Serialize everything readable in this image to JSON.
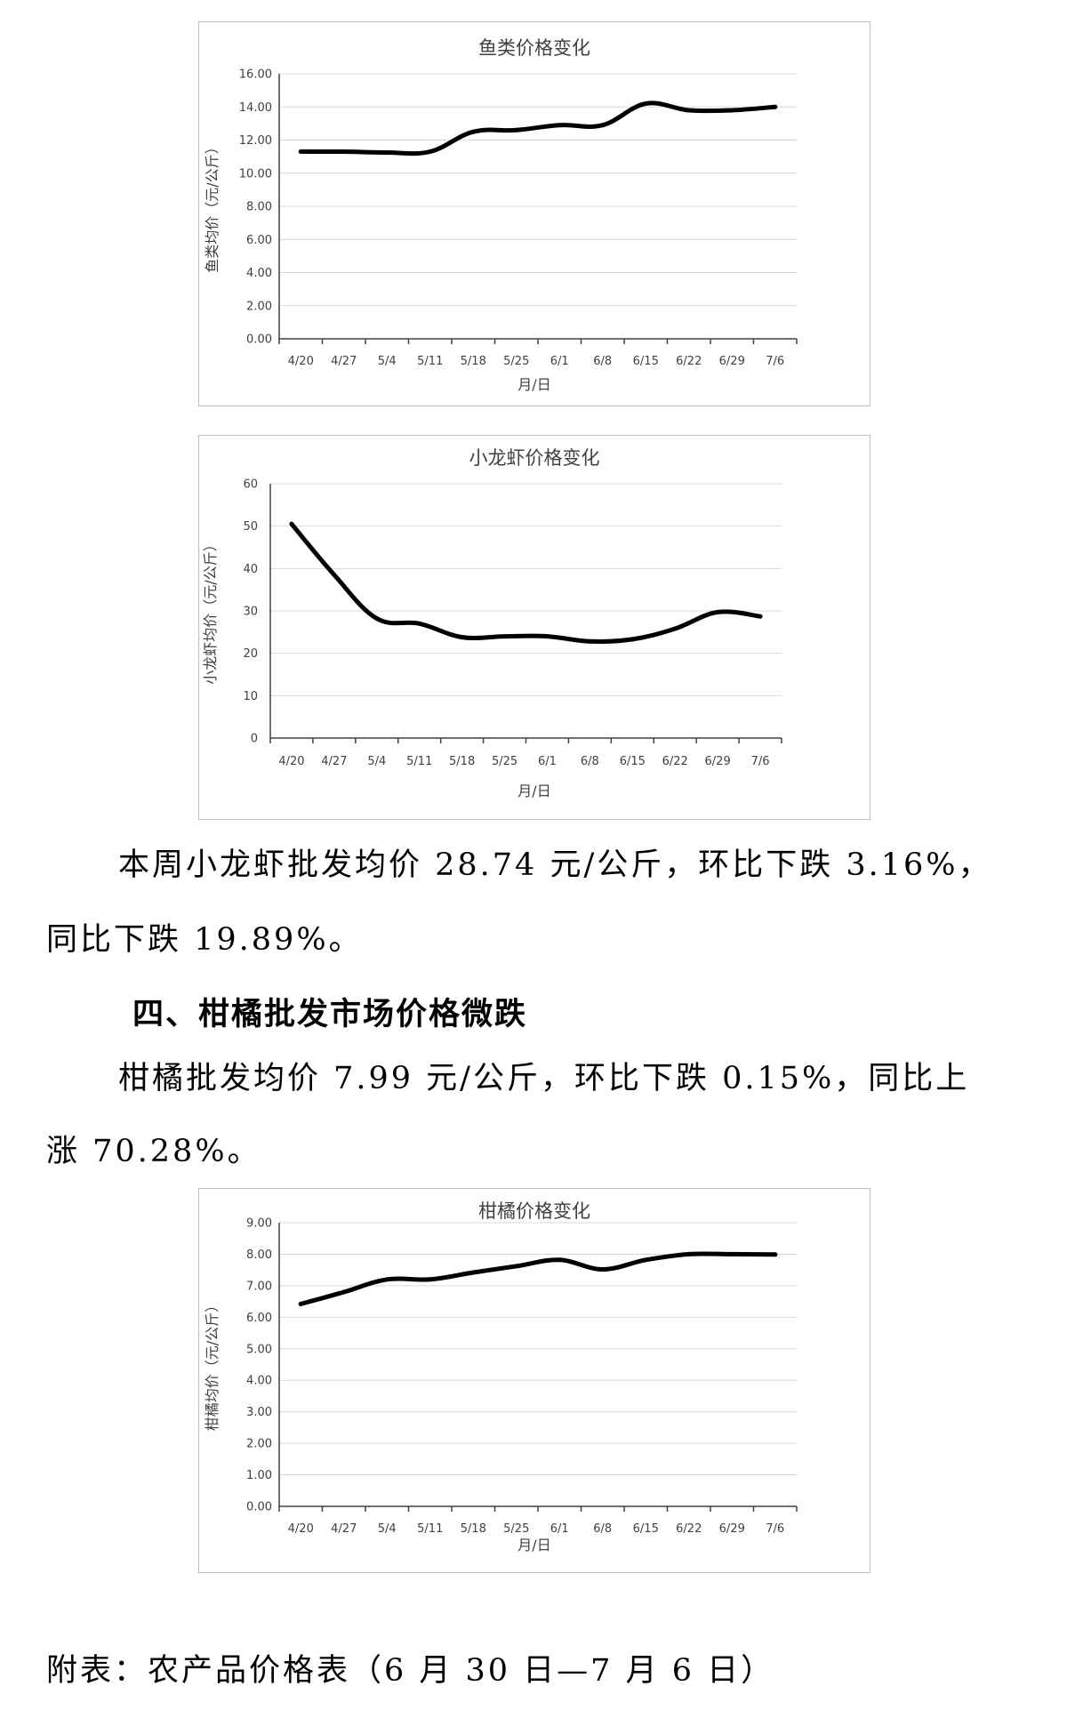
{
  "chart_data": [
    {
      "type": "line",
      "title": "鱼类价格变化",
      "xlabel": "月/日",
      "ylabel": "鱼类均价（元/公斤）",
      "categories": [
        "4/20",
        "4/27",
        "5/4",
        "5/11",
        "5/18",
        "5/25",
        "6/1",
        "6/8",
        "6/15",
        "6/22",
        "6/29",
        "7/6"
      ],
      "values": [
        11.3,
        11.3,
        11.25,
        11.3,
        12.5,
        12.6,
        12.9,
        12.9,
        14.2,
        13.8,
        13.8,
        14.0
      ],
      "yticks": [
        "0.00",
        "2.00",
        "4.00",
        "6.00",
        "8.00",
        "10.00",
        "12.00",
        "14.00",
        "16.00"
      ],
      "ylim": [
        0,
        16
      ],
      "grid": true
    },
    {
      "type": "line",
      "title": "小龙虾价格变化",
      "xlabel": "月/日",
      "ylabel": "小龙虾均价（元/公斤）",
      "categories": [
        "4/20",
        "4/27",
        "5/4",
        "5/11",
        "5/18",
        "5/25",
        "6/1",
        "6/8",
        "6/15",
        "6/22",
        "6/29",
        "7/6"
      ],
      "values": [
        50.5,
        38.5,
        28.2,
        27.0,
        23.8,
        24.0,
        24.0,
        22.8,
        23.3,
        25.8,
        29.7,
        28.7
      ],
      "yticks": [
        "0",
        "10",
        "20",
        "30",
        "40",
        "50",
        "60"
      ],
      "ylim": [
        0,
        60
      ],
      "grid": true
    },
    {
      "type": "line",
      "title": "柑橘价格变化",
      "xlabel": "月/日",
      "ylabel": "柑橘均价（元/公斤）",
      "categories": [
        "4/20",
        "4/27",
        "5/4",
        "5/11",
        "5/18",
        "5/25",
        "6/1",
        "6/8",
        "6/15",
        "6/22",
        "6/29",
        "7/6"
      ],
      "values": [
        6.42,
        6.8,
        7.2,
        7.2,
        7.42,
        7.62,
        7.82,
        7.52,
        7.82,
        8.0,
        8.0,
        7.99
      ],
      "yticks": [
        "0.00",
        "1.00",
        "2.00",
        "3.00",
        "4.00",
        "5.00",
        "6.00",
        "7.00",
        "8.00",
        "9.00"
      ],
      "ylim": [
        0,
        9
      ],
      "grid": true
    }
  ],
  "text": {
    "para1_line1": "本周小龙虾批发均价 28.74 元/公斤，环比下跌 3.16%，",
    "para1_line2": "同比下跌 19.89%。",
    "heading4": "四、柑橘批发市场价格微跌",
    "para2_line1": "柑橘批发均价 7.99 元/公斤，环比下跌 0.15%，同比上",
    "para2_line2": "涨 70.28%。",
    "appendix": "附表：农产品价格表（6 月 30 日—7 月 6 日）"
  }
}
